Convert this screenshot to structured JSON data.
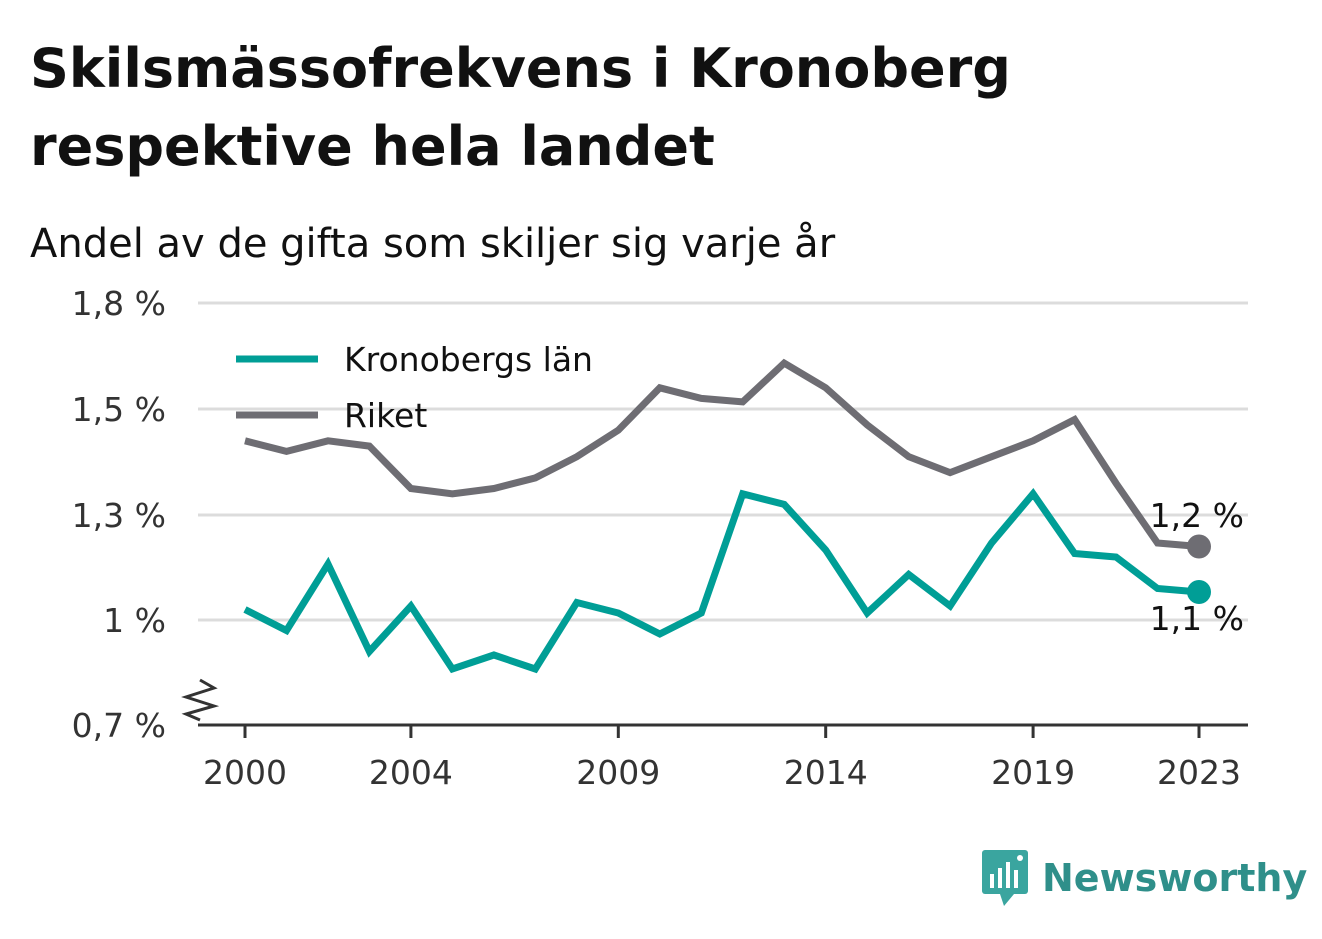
{
  "title": "Skilsmässofrekvens i Kronoberg respektive hela landet",
  "subtitle": "Andel av de gifta som skiljer sig varje år",
  "brand": "Newsworthy",
  "colors": {
    "kronoberg": "#009e96",
    "riket": "#6e6d73",
    "grid": "#dcdcdc",
    "axis": "#333333"
  },
  "chart_data": {
    "type": "line",
    "x": [
      2000,
      2001,
      2002,
      2003,
      2004,
      2005,
      2006,
      2007,
      2008,
      2009,
      2010,
      2011,
      2012,
      2013,
      2014,
      2015,
      2016,
      2017,
      2018,
      2019,
      2020,
      2021,
      2022,
      2023
    ],
    "series": [
      {
        "name": "Kronobergs län",
        "values": [
          1.03,
          0.97,
          1.16,
          0.91,
          1.04,
          0.86,
          0.9,
          0.86,
          1.05,
          1.02,
          0.96,
          1.02,
          1.34,
          1.32,
          1.2,
          1.02,
          1.13,
          1.04,
          1.22,
          1.34,
          1.19,
          1.18,
          1.09,
          1.08
        ]
      },
      {
        "name": "Riket",
        "values": [
          1.44,
          1.42,
          1.44,
          1.43,
          1.35,
          1.34,
          1.35,
          1.37,
          1.41,
          1.46,
          1.56,
          1.53,
          1.52,
          1.63,
          1.56,
          1.47,
          1.41,
          1.38,
          1.41,
          1.44,
          1.48,
          1.36,
          1.22,
          1.21
        ]
      }
    ],
    "end_labels": [
      "1,1 %",
      "1,2 %"
    ],
    "y_ticks": [
      {
        "value": 0.7,
        "label": "0,7 %"
      },
      {
        "value": 1.0,
        "label": "1 %"
      },
      {
        "value": 1.3,
        "label": "1,3 %"
      },
      {
        "value": 1.5,
        "label": "1,5 %"
      },
      {
        "value": 1.8,
        "label": "1,8 %"
      }
    ],
    "x_ticks": [
      2000,
      2004,
      2009,
      2014,
      2019,
      2023
    ],
    "x_tick_labels": [
      "2000",
      "2004",
      "2009",
      "2014",
      "2019",
      "2023"
    ],
    "legend": [
      "Kronobergs län",
      "Riket"
    ],
    "legend_position": "top-left",
    "grid": true,
    "axis_break": true
  }
}
